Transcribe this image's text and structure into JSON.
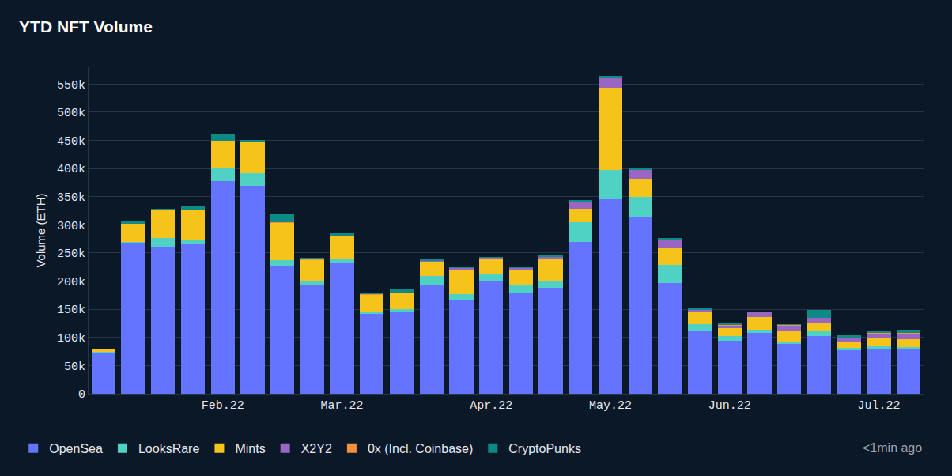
{
  "chart_data": {
    "type": "bar",
    "title": "YTD NFT Volume",
    "y_label": "Volume (ETH)",
    "annotations": [
      "<1min ago"
    ],
    "categories": [
      null,
      null,
      null,
      null,
      "Feb.22",
      null,
      null,
      null,
      "Mar.22",
      null,
      null,
      null,
      null,
      "Apr.22",
      null,
      null,
      null,
      "May.22",
      null,
      null,
      null,
      "Jun.22",
      null,
      null,
      null,
      null,
      "Jul.22",
      null
    ],
    "series": [
      {
        "name": "OpenSea",
        "color": "#6474ff",
        "values": [
          73000,
          268000,
          260000,
          265000,
          378000,
          370000,
          228000,
          194000,
          233000,
          142000,
          144000,
          193000,
          166000,
          199000,
          180000,
          188000,
          269000,
          346000,
          314000,
          196000,
          111000,
          94000,
          108000,
          88000,
          103000,
          77000,
          80000,
          78000
        ]
      },
      {
        "name": "LooksRare",
        "color": "#4fd2c4",
        "values": [
          1000,
          1000,
          16000,
          8000,
          22000,
          22000,
          9000,
          5000,
          6000,
          4000,
          6000,
          16000,
          11000,
          15000,
          12000,
          11000,
          36000,
          52000,
          36000,
          33000,
          12000,
          8000,
          6000,
          5000,
          8000,
          4000,
          5000,
          5000
        ]
      },
      {
        "name": "Mints",
        "color": "#f6c31b",
        "values": [
          5000,
          33000,
          50000,
          54000,
          49000,
          54000,
          67000,
          39000,
          41000,
          30000,
          28000,
          25000,
          44000,
          25000,
          29000,
          41000,
          23000,
          146000,
          30000,
          30000,
          21000,
          14000,
          22000,
          20000,
          16000,
          11000,
          15000,
          14000
        ]
      },
      {
        "name": "X2Y2",
        "color": "#9a66c4",
        "values": [
          0,
          0,
          0,
          0,
          0,
          0,
          0,
          0,
          0,
          0,
          0,
          2000,
          2000,
          2000,
          2000,
          3000,
          12000,
          16000,
          17000,
          13000,
          5000,
          5000,
          9000,
          8000,
          8000,
          6000,
          7000,
          10000
        ]
      },
      {
        "name": "0x (Incl. Coinbase)",
        "color": "#f5903e",
        "values": [
          500,
          500,
          500,
          500,
          500,
          500,
          500,
          500,
          500,
          500,
          500,
          500,
          500,
          500,
          500,
          500,
          500,
          500,
          500,
          500,
          500,
          500,
          500,
          500,
          500,
          500,
          500,
          500
        ]
      },
      {
        "name": "CryptoPunks",
        "color": "#0e8a86",
        "values": [
          1000,
          3000,
          2000,
          5000,
          13000,
          5000,
          14000,
          3000,
          4000,
          2000,
          8000,
          4000,
          1000,
          2000,
          1000,
          4000,
          4000,
          4000,
          3000,
          4000,
          2000,
          3000,
          1000,
          2000,
          14000,
          6000,
          3000,
          6000
        ]
      }
    ],
    "ylim": [
      0,
      580000
    ],
    "yticks": [
      0,
      {
        "value": 50000,
        "label": "50k"
      },
      {
        "value": 100000,
        "label": "100k"
      },
      {
        "value": 150000,
        "label": "150k"
      },
      {
        "value": 200000,
        "label": "200k"
      },
      {
        "value": 250000,
        "label": "250k"
      },
      {
        "value": 300000,
        "label": "300k"
      },
      {
        "value": 350000,
        "label": "350k"
      },
      {
        "value": 400000,
        "label": "400k"
      },
      {
        "value": 450000,
        "label": "450k"
      },
      {
        "value": 500000,
        "label": "500k"
      },
      {
        "value": 550000,
        "label": "550k"
      }
    ],
    "stacked": true,
    "grid": true,
    "legend": "bottom"
  }
}
